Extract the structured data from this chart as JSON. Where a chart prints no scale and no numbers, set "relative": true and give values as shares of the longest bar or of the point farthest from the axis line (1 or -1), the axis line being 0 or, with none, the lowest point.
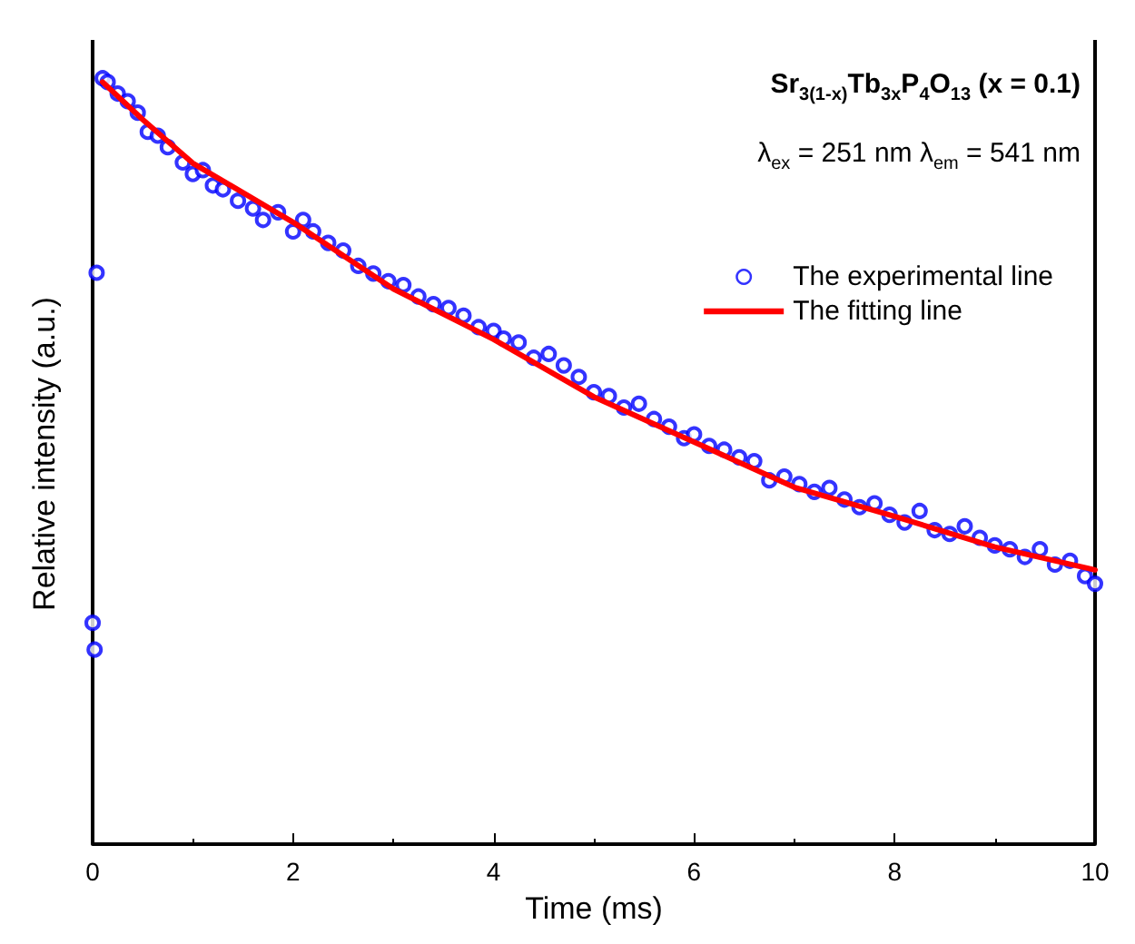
{
  "chart_data": {
    "type": "scatter",
    "relative": true,
    "xlabel": "Time (ms)",
    "ylabel": "Relative intensity (a.u.)",
    "annotations": [
      "Sr$_{3(1-x)}$Tb$_{3x}$P$_{4}$O$_{13}$ (x = 0.1)",
      "λ$_{ex}$ = 251 nm λ$_{em}$ = 541 nm"
    ],
    "xlim": [
      0,
      10
    ],
    "xticks": [
      0,
      2,
      4,
      6,
      8,
      10
    ],
    "grid": false,
    "legend": "top right",
    "series": [
      {
        "name": "The experimental line",
        "marker": "circle",
        "color": "#0000ff",
        "x": [
          0.0,
          0.02,
          0.04,
          0.1,
          0.15,
          0.25,
          0.35,
          0.45,
          0.55,
          0.65,
          0.75,
          0.9,
          1.0,
          1.1,
          1.2,
          1.3,
          1.45,
          1.6,
          1.7,
          1.85,
          2.0,
          2.1,
          2.2,
          2.35,
          2.5,
          2.65,
          2.8,
          2.95,
          3.1,
          3.25,
          3.4,
          3.55,
          3.7,
          3.85,
          4.0,
          4.1,
          4.25,
          4.4,
          4.55,
          4.7,
          4.85,
          5.0,
          5.15,
          5.3,
          5.45,
          5.6,
          5.75,
          5.9,
          6.0,
          6.15,
          6.3,
          6.45,
          6.6,
          6.75,
          6.9,
          7.05,
          7.2,
          7.35,
          7.5,
          7.65,
          7.8,
          7.95,
          8.1,
          8.25,
          8.4,
          8.55,
          8.7,
          8.85,
          9.0,
          9.15,
          9.3,
          9.45,
          9.6,
          9.75,
          9.9,
          10.0
        ],
        "values": [
          0.289,
          0.254,
          0.746,
          1.0,
          0.995,
          0.98,
          0.97,
          0.955,
          0.93,
          0.925,
          0.91,
          0.89,
          0.875,
          0.88,
          0.86,
          0.855,
          0.84,
          0.83,
          0.815,
          0.825,
          0.8,
          0.815,
          0.8,
          0.785,
          0.775,
          0.755,
          0.745,
          0.735,
          0.73,
          0.715,
          0.705,
          0.7,
          0.69,
          0.675,
          0.67,
          0.66,
          0.655,
          0.635,
          0.64,
          0.625,
          0.61,
          0.59,
          0.585,
          0.57,
          0.575,
          0.555,
          0.545,
          0.53,
          0.535,
          0.52,
          0.515,
          0.505,
          0.5,
          0.475,
          0.48,
          0.47,
          0.46,
          0.465,
          0.45,
          0.44,
          0.445,
          0.43,
          0.42,
          0.435,
          0.41,
          0.405,
          0.415,
          0.4,
          0.39,
          0.385,
          0.375,
          0.385,
          0.365,
          0.37,
          0.35,
          0.34
        ]
      },
      {
        "name": "The fitting line",
        "type": "line",
        "marker": "none",
        "line_style": "solid",
        "color": "#ff0000",
        "x": [
          0.1,
          0.5,
          1,
          2,
          3,
          4,
          5,
          6,
          7,
          8,
          9,
          10
        ],
        "values": [
          0.995,
          0.946,
          0.889,
          0.812,
          0.725,
          0.659,
          0.584,
          0.525,
          0.466,
          0.428,
          0.388,
          0.358
        ]
      }
    ]
  }
}
